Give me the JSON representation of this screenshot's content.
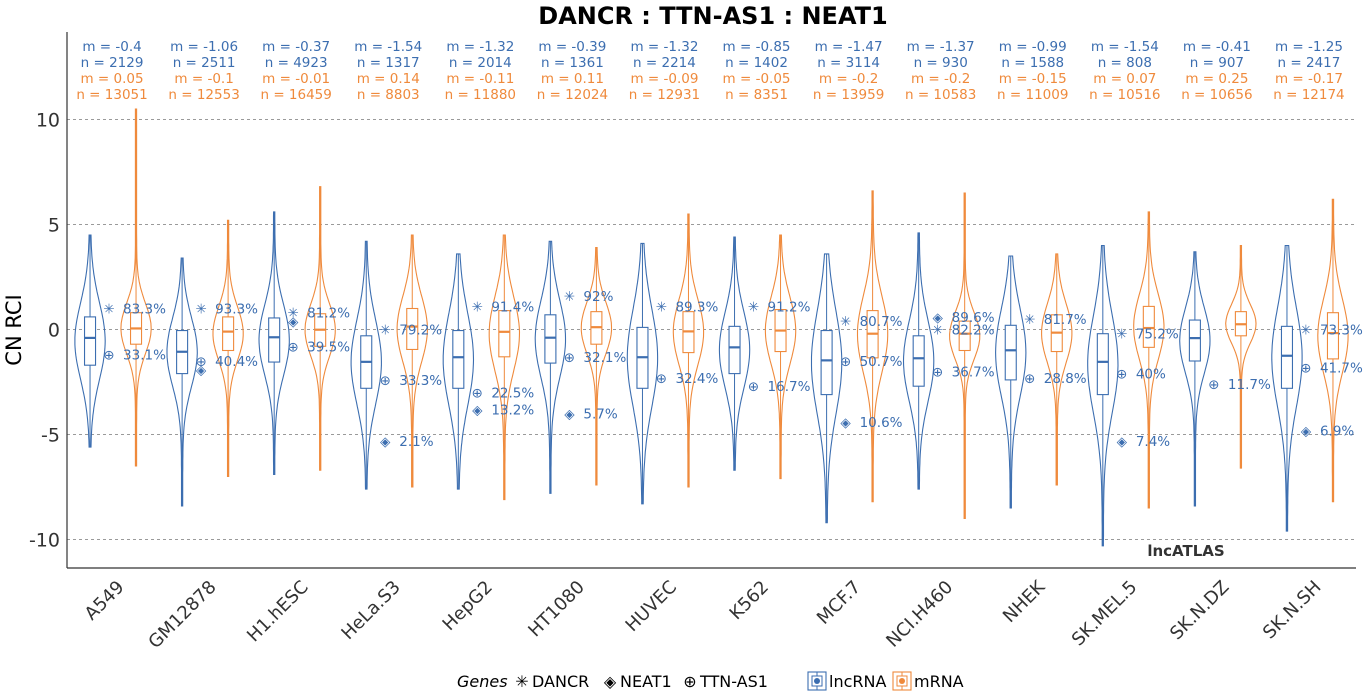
{
  "chart_data": {
    "type": "violin",
    "title": "DANCR : TTN-AS1 : NEAT1",
    "ylabel": "CN RCI",
    "xlabel": "",
    "ylim": [
      -11,
      14
    ],
    "yticks": [
      10,
      5,
      0,
      -5,
      -10
    ],
    "grid": "horizontal dashed",
    "annotation": "lncATLAS",
    "colors": {
      "lncRNA": "#3c6eb0",
      "mRNA": "#ef8a3c"
    },
    "legend": {
      "genes_title": "Genes",
      "genes": [
        {
          "name": "DANCR",
          "glyph": "✳"
        },
        {
          "name": "NEAT1",
          "glyph": "◈"
        },
        {
          "name": "TTN-AS1",
          "glyph": "⊕"
        }
      ],
      "fills": [
        {
          "name": "lncRNA"
        },
        {
          "name": "mRNA"
        }
      ]
    },
    "categories": [
      "A549",
      "GM12878",
      "H1.hESC",
      "HeLa.S3",
      "HepG2",
      "HT1080",
      "HUVEC",
      "K562",
      "MCF.7",
      "NCI.H460",
      "NHEK",
      "SK.MEL.5",
      "SK.N.DZ",
      "SK.N.SH"
    ],
    "stats_lnc": [
      {
        "m": "m = -0.4",
        "n": "n = 2129"
      },
      {
        "m": "m = -1.06",
        "n": "n = 2511"
      },
      {
        "m": "m = -0.37",
        "n": "n = 4923"
      },
      {
        "m": "m = -1.54",
        "n": "n = 1317"
      },
      {
        "m": "m = -1.32",
        "n": "n = 2014"
      },
      {
        "m": "m = -0.39",
        "n": "n = 1361"
      },
      {
        "m": "m = -1.32",
        "n": "n = 2214"
      },
      {
        "m": "m = -0.85",
        "n": "n = 1402"
      },
      {
        "m": "m = -1.47",
        "n": "n = 3114"
      },
      {
        "m": "m = -1.37",
        "n": "n = 930"
      },
      {
        "m": "m = -0.99",
        "n": "n = 1588"
      },
      {
        "m": "m = -1.54",
        "n": "n = 808"
      },
      {
        "m": "m = -0.41",
        "n": "n = 907"
      },
      {
        "m": "m = -1.25",
        "n": "n = 2417"
      }
    ],
    "stats_mrna": [
      {
        "m": "m = 0.05",
        "n": "n = 13051"
      },
      {
        "m": "m = -0.1",
        "n": "n = 12553"
      },
      {
        "m": "m = -0.01",
        "n": "n = 16459"
      },
      {
        "m": "m = 0.14",
        "n": "n = 8803"
      },
      {
        "m": "m = -0.11",
        "n": "n = 11880"
      },
      {
        "m": "m = 0.11",
        "n": "n = 12024"
      },
      {
        "m": "m = -0.09",
        "n": "n = 12931"
      },
      {
        "m": "m = -0.05",
        "n": "n = 8351"
      },
      {
        "m": "m = -0.2",
        "n": "n = 13959"
      },
      {
        "m": "m = -0.2",
        "n": "n = 10583"
      },
      {
        "m": "m = -0.15",
        "n": "n = 11009"
      },
      {
        "m": "m = 0.07",
        "n": "n = 10516"
      },
      {
        "m": "m = 0.25",
        "n": "n = 10656"
      },
      {
        "m": "m = -0.17",
        "n": "n = 12174"
      }
    ],
    "lncRNA": [
      {
        "median": -0.4,
        "q1": -1.7,
        "q3": 0.6,
        "min": -5.6,
        "max": 4.5
      },
      {
        "median": -1.06,
        "q1": -2.1,
        "q3": -0.05,
        "min": -8.4,
        "max": 3.4
      },
      {
        "median": -0.37,
        "q1": -1.55,
        "q3": 0.55,
        "min": -6.9,
        "max": 5.6
      },
      {
        "median": -1.54,
        "q1": -2.8,
        "q3": -0.3,
        "min": -7.6,
        "max": 4.2
      },
      {
        "median": -1.32,
        "q1": -2.8,
        "q3": -0.05,
        "min": -7.6,
        "max": 3.6
      },
      {
        "median": -0.39,
        "q1": -1.6,
        "q3": 0.7,
        "min": -7.8,
        "max": 4.2
      },
      {
        "median": -1.32,
        "q1": -2.8,
        "q3": 0.1,
        "min": -8.3,
        "max": 4.1
      },
      {
        "median": -0.85,
        "q1": -2.1,
        "q3": 0.15,
        "min": -6.7,
        "max": 4.4
      },
      {
        "median": -1.47,
        "q1": -3.1,
        "q3": -0.05,
        "min": -9.2,
        "max": 3.6
      },
      {
        "median": -1.37,
        "q1": -2.7,
        "q3": -0.3,
        "min": -7.6,
        "max": 4.6
      },
      {
        "median": -0.99,
        "q1": -2.4,
        "q3": 0.2,
        "min": -8.5,
        "max": 3.5
      },
      {
        "median": -1.54,
        "q1": -3.1,
        "q3": -0.2,
        "min": -10.3,
        "max": 4.0
      },
      {
        "median": -0.41,
        "q1": -1.5,
        "q3": 0.45,
        "min": -8.4,
        "max": 3.7
      },
      {
        "median": -1.25,
        "q1": -2.8,
        "q3": 0.15,
        "min": -9.6,
        "max": 4.0
      }
    ],
    "mRNA": [
      {
        "median": 0.05,
        "q1": -0.7,
        "q3": 0.8,
        "min": -6.5,
        "max": 10.5
      },
      {
        "median": -0.1,
        "q1": -1.0,
        "q3": 0.6,
        "min": -7.0,
        "max": 5.2
      },
      {
        "median": -0.01,
        "q1": -0.8,
        "q3": 0.75,
        "min": -6.7,
        "max": 6.8
      },
      {
        "median": 0.14,
        "q1": -0.95,
        "q3": 1.0,
        "min": -7.5,
        "max": 4.5
      },
      {
        "median": -0.11,
        "q1": -1.3,
        "q3": 0.9,
        "min": -8.1,
        "max": 4.5
      },
      {
        "median": 0.11,
        "q1": -0.7,
        "q3": 0.85,
        "min": -7.4,
        "max": 3.9
      },
      {
        "median": -0.09,
        "q1": -1.1,
        "q3": 0.85,
        "min": -7.5,
        "max": 5.5
      },
      {
        "median": -0.05,
        "q1": -1.05,
        "q3": 0.95,
        "min": -7.1,
        "max": 4.5
      },
      {
        "median": -0.2,
        "q1": -1.35,
        "q3": 0.9,
        "min": -8.2,
        "max": 6.6
      },
      {
        "median": -0.2,
        "q1": -1.0,
        "q3": 0.4,
        "min": -9.0,
        "max": 6.5
      },
      {
        "median": -0.15,
        "q1": -1.05,
        "q3": 0.7,
        "min": -7.4,
        "max": 3.6
      },
      {
        "median": 0.07,
        "q1": -0.85,
        "q3": 1.1,
        "min": -8.5,
        "max": 5.6
      },
      {
        "median": 0.25,
        "q1": -0.3,
        "q3": 0.85,
        "min": -6.6,
        "max": 4.0
      },
      {
        "median": -0.17,
        "q1": -1.4,
        "q3": 0.8,
        "min": -8.2,
        "max": 6.2
      }
    ],
    "genes_points": [
      {
        "DANCR": {
          "y": 1.0,
          "pct": "83.3%"
        },
        "TTN-AS1": {
          "y": -1.2,
          "pct": "33.1%"
        }
      },
      {
        "DANCR": {
          "y": 1.0,
          "pct": "93.3%"
        },
        "TTN-AS1": {
          "y": -1.5,
          "pct": "40.4%"
        },
        "NEAT1": {
          "y": -1.9
        }
      },
      {
        "DANCR": {
          "y": 0.8,
          "pct": "81.2%"
        },
        "TTN-AS1": {
          "y": -0.8,
          "pct": "39.5%"
        },
        "NEAT1": {
          "y": 0.4
        }
      },
      {
        "DANCR": {
          "y": 0.0,
          "pct": "79.2%"
        },
        "TTN-AS1": {
          "y": -2.4,
          "pct": "33.3%"
        },
        "NEAT1": {
          "y": -5.3,
          "pct": "2.1%"
        }
      },
      {
        "DANCR": {
          "y": 1.1,
          "pct": "91.4%"
        },
        "TTN-AS1": {
          "y": -3.0,
          "pct": "22.5%"
        },
        "NEAT1": {
          "y": -3.8,
          "pct": "13.2%"
        }
      },
      {
        "DANCR": {
          "y": 1.6,
          "pct": "92%"
        },
        "TTN-AS1": {
          "y": -1.3,
          "pct": "32.1%"
        },
        "NEAT1": {
          "y": -4.0,
          "pct": "5.7%"
        }
      },
      {
        "DANCR": {
          "y": 1.1,
          "pct": "89.3%"
        },
        "TTN-AS1": {
          "y": -2.3,
          "pct": "32.4%"
        }
      },
      {
        "DANCR": {
          "y": 1.1,
          "pct": "91.2%"
        },
        "TTN-AS1": {
          "y": -2.7,
          "pct": "16.7%"
        }
      },
      {
        "DANCR": {
          "y": 0.4,
          "pct": "80.7%"
        },
        "TTN-AS1": {
          "y": -1.5,
          "pct": "50.7%"
        },
        "NEAT1": {
          "y": -4.4,
          "pct": "10.6%"
        }
      },
      {
        "DANCR": {
          "y": 0.0,
          "pct": "82.2%"
        },
        "TTN-AS1": {
          "y": -2.0,
          "pct": "36.7%"
        },
        "NEAT1": {
          "y": 0.6,
          "pct": "89.6%"
        }
      },
      {
        "DANCR": {
          "y": 0.5,
          "pct": "81.7%"
        },
        "TTN-AS1": {
          "y": -2.3,
          "pct": "28.8%"
        }
      },
      {
        "DANCR": {
          "y": -0.2,
          "pct": "75.2%"
        },
        "TTN-AS1": {
          "y": -2.1,
          "pct": "40%"
        },
        "NEAT1": {
          "y": -5.3,
          "pct": "7.4%"
        }
      },
      {
        "TTN-AS1": {
          "y": -2.6,
          "pct": "11.7%"
        }
      },
      {
        "DANCR": {
          "y": 0.0,
          "pct": "73.3%"
        },
        "TTN-AS1": {
          "y": -1.8,
          "pct": "41.7%"
        },
        "NEAT1": {
          "y": -4.8,
          "pct": "6.9%"
        }
      }
    ]
  }
}
